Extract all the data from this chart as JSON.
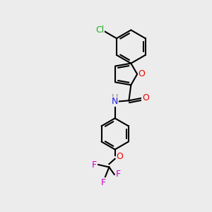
{
  "bg_color": "#ececec",
  "bond_color": "#000000",
  "bond_width": 1.5,
  "atom_colors": {
    "O": "#ee0000",
    "N": "#2222dd",
    "Cl": "#22aa22",
    "F": "#cc00cc",
    "H": "#888888",
    "C": "#000000"
  },
  "font_size": 9,
  "figsize": [
    3.0,
    3.0
  ],
  "dpi": 100
}
